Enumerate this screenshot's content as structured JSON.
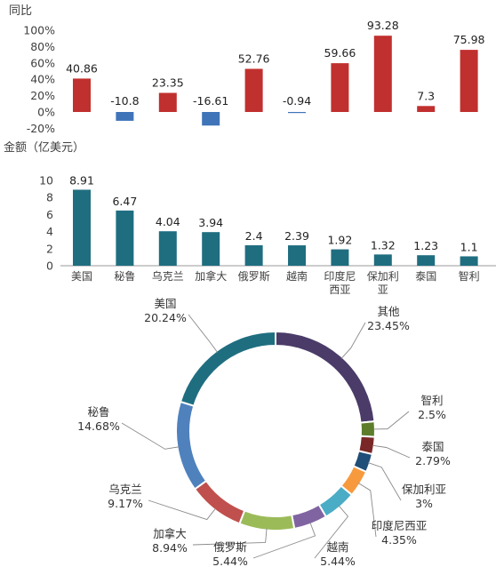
{
  "chart_data": [
    {
      "type": "bar",
      "ylabel": "同比",
      "yticks": [
        "100%",
        "80%",
        "60%",
        "40%",
        "20%",
        "0%",
        "-20%"
      ],
      "ylim": [
        -20,
        100
      ],
      "grid": false,
      "categories": [
        "美国",
        "秘鲁",
        "乌克兰",
        "加拿大",
        "俄罗斯",
        "越南",
        "印度尼西亚",
        "保加利亚",
        "泰国",
        "智利"
      ],
      "values": [
        40.86,
        -10.8,
        23.35,
        -16.61,
        52.76,
        -0.94,
        59.66,
        93.28,
        7.3,
        75.98
      ],
      "value_labels": [
        "40.86",
        "-10.8",
        "23.35",
        "-16.61",
        "52.76",
        "-0.94",
        "59.66",
        "93.28",
        "7.3",
        "75.98"
      ],
      "colors": {
        "positive": "#C0302E",
        "negative": "#3F74B9"
      }
    },
    {
      "type": "bar",
      "ylabel": "金额（亿美元）",
      "yticks": [
        "10",
        "8",
        "6",
        "4",
        "2",
        "0"
      ],
      "ylim": [
        0,
        10
      ],
      "grid": false,
      "categories": [
        "美国",
        "秘鲁",
        "乌克兰",
        "加拿大",
        "俄罗斯",
        "越南",
        "印度尼西亚",
        "保加利亚",
        "泰国",
        "智利"
      ],
      "category_lines": [
        [
          "美国"
        ],
        [
          "秘鲁"
        ],
        [
          "乌克兰"
        ],
        [
          "加拿大"
        ],
        [
          "俄罗斯"
        ],
        [
          "越南"
        ],
        [
          "印度尼",
          "西亚"
        ],
        [
          "保加利",
          "亚"
        ],
        [
          "泰国"
        ],
        [
          "智利"
        ]
      ],
      "values": [
        8.91,
        6.47,
        4.04,
        3.94,
        2.4,
        2.39,
        1.92,
        1.32,
        1.23,
        1.1
      ],
      "value_labels": [
        "8.91",
        "6.47",
        "4.04",
        "3.94",
        "2.4",
        "2.39",
        "1.92",
        "1.32",
        "1.23",
        "1.1"
      ],
      "color": "#1F6E80"
    },
    {
      "type": "pie",
      "style": "donut",
      "slices": [
        {
          "name": "其他",
          "value": 23.45,
          "label": "23.45%",
          "color": "#4A3B68"
        },
        {
          "name": "智利",
          "value": 2.5,
          "label": "2.5%",
          "color": "#5D7D2C"
        },
        {
          "name": "泰国",
          "value": 2.79,
          "label": "2.79%",
          "color": "#7A2727"
        },
        {
          "name": "保加利亚",
          "value": 3,
          "label": "3%",
          "color": "#1F4E79"
        },
        {
          "name": "印度尼西亚",
          "value": 4.35,
          "label": "4.35%",
          "color": "#F79A3E"
        },
        {
          "name": "越南",
          "value": 5.44,
          "label": "5.44%",
          "color": "#4BACC6"
        },
        {
          "name": "俄罗斯",
          "value": 5.44,
          "label": "5.44%",
          "color": "#8064A2"
        },
        {
          "name": "加拿大",
          "value": 8.94,
          "label": "8.94%",
          "color": "#9BBB59"
        },
        {
          "name": "乌克兰",
          "value": 9.17,
          "label": "9.17%",
          "color": "#C0504D"
        },
        {
          "name": "秘鲁",
          "value": 14.68,
          "label": "14.68%",
          "color": "#4F81BD"
        },
        {
          "name": "美国",
          "value": 20.24,
          "label": "20.24%",
          "color": "#1F6E80"
        }
      ]
    }
  ]
}
